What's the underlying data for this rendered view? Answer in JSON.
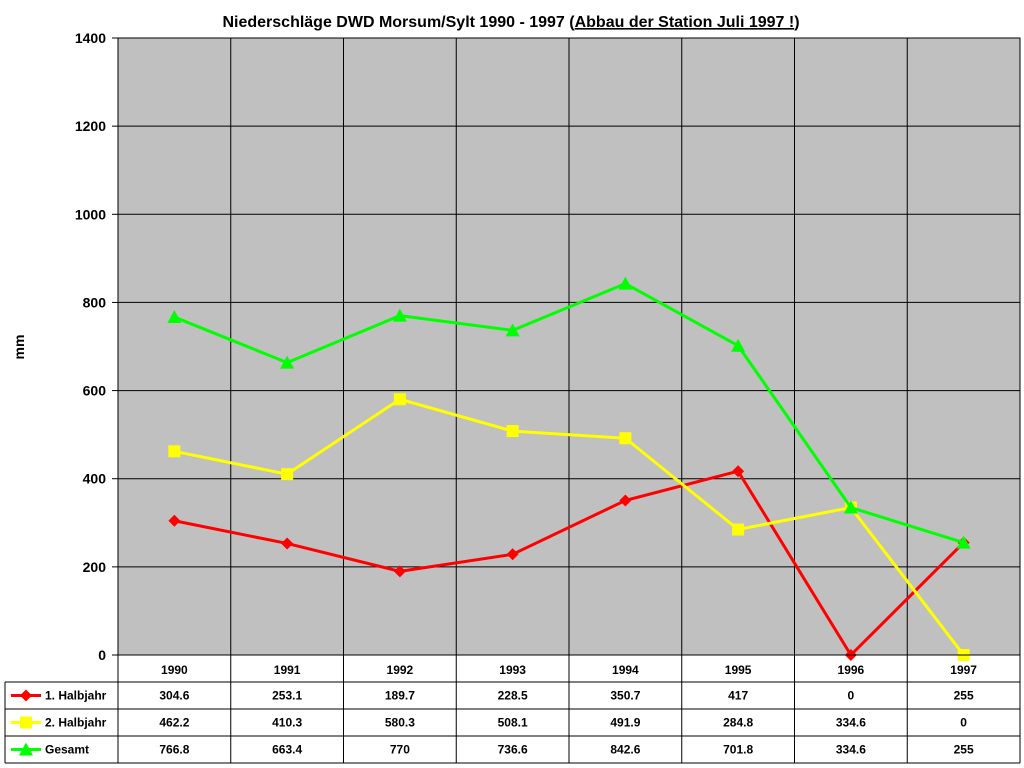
{
  "chart_data": {
    "type": "line",
    "title": {
      "prefix": "Niederschläge DWD Morsum/Sylt 1990 - 1997 (",
      "underlined": "Abbau der Station Juli 1997 !",
      "suffix": ")"
    },
    "ylabel": "mm",
    "xlabel": "",
    "ylim": [
      0,
      1400
    ],
    "yticks": [
      0,
      200,
      400,
      600,
      800,
      1000,
      1200,
      1400
    ],
    "grid": true,
    "legend_placement": "data-table-left",
    "plot_background": "#c0c0c0",
    "categories": [
      "1990",
      "1991",
      "1992",
      "1993",
      "1994",
      "1995",
      "1996",
      "1997"
    ],
    "series": [
      {
        "name": "1. Halbjahr",
        "color": "#ff0000",
        "marker": "diamond",
        "values": [
          304.6,
          253.1,
          189.7,
          228.5,
          350.7,
          417,
          0,
          255
        ],
        "table_values": [
          "304.6",
          "253.1",
          "189.7",
          "228.5",
          "350.7",
          "417",
          "0",
          "255"
        ]
      },
      {
        "name": "2. Halbjahr",
        "color": "#ffff00",
        "marker": "square",
        "values": [
          462.2,
          410.3,
          580.3,
          508.1,
          491.9,
          284.8,
          334.6,
          0
        ],
        "table_values": [
          "462.2",
          "410.3",
          "580.3",
          "508.1",
          "491.9",
          "284.8",
          "334.6",
          "0"
        ]
      },
      {
        "name": "Gesamt",
        "color": "#00ff00",
        "marker": "triangle",
        "values": [
          766.8,
          663.4,
          770,
          736.6,
          842.6,
          701.8,
          334.6,
          255
        ],
        "table_values": [
          "766.8",
          "663.4",
          "770",
          "736.6",
          "842.6",
          "701.8",
          "334.6",
          "255"
        ]
      }
    ]
  }
}
